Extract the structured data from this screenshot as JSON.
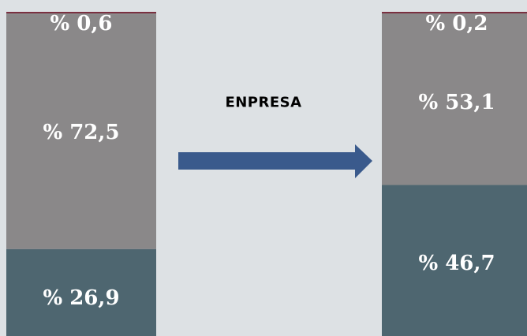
{
  "chart_data": {
    "type": "bar",
    "stacked": true,
    "categories": [
      "",
      ""
    ],
    "series": [
      {
        "values": [
          26.9,
          46.7
        ],
        "color": "#4e6670",
        "labels": [
          "% 26,9",
          "% 46,7"
        ]
      },
      {
        "values": [
          72.5,
          53.1
        ],
        "color": "#8a8889",
        "labels": [
          "% 72,5",
          "% 53,1"
        ]
      },
      {
        "values": [
          0.6,
          0.2
        ],
        "color": "#8a8889",
        "labels": [
          "% 0,6",
          "% 0,2"
        ]
      }
    ],
    "top_border_color": "#7a3040",
    "ylim": [
      0,
      100
    ],
    "annotation": "ENPRESA",
    "arrow_color": "#3a5a8c"
  }
}
